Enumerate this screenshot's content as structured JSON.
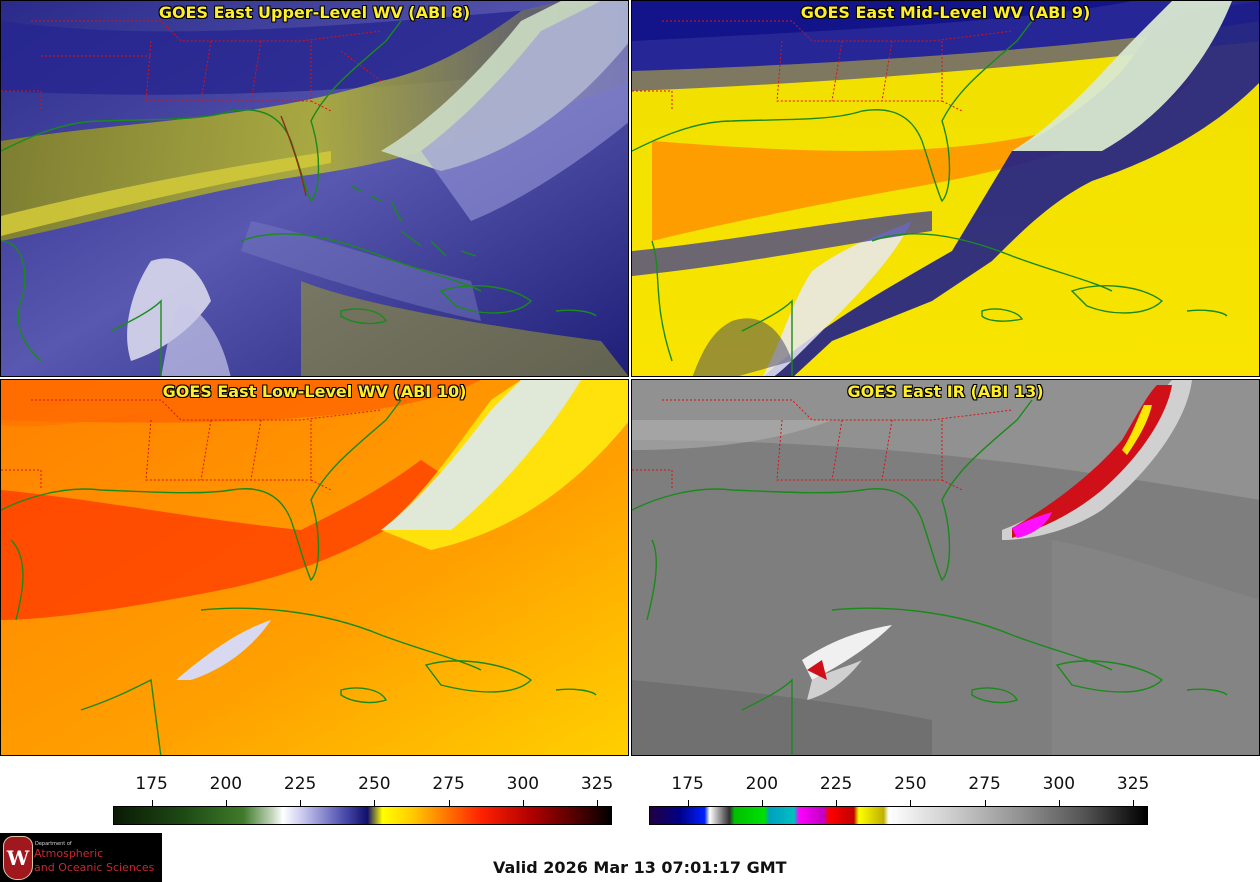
{
  "panels": [
    {
      "title": "GOES East Upper-Level WV (ABI 8)"
    },
    {
      "title": "GOES East Mid-Level WV (ABI 9)"
    },
    {
      "title": "GOES East Low-Level WV (ABI 10)"
    },
    {
      "title": "GOES East IR (ABI 13)"
    }
  ],
  "colorbars": {
    "wv": {
      "ticks": [
        "175",
        "200",
        "225",
        "250",
        "275",
        "300",
        "325"
      ],
      "min": 162,
      "max": 330
    },
    "ir": {
      "ticks": [
        "175",
        "200",
        "225",
        "250",
        "275",
        "300",
        "325"
      ],
      "min": 162,
      "max": 330
    }
  },
  "logo": {
    "seal_letter": "W",
    "dept_text": "Department of",
    "line1": "Atmospheric",
    "line2": "and Oceanic Sciences"
  },
  "valid_time": "Valid 2026 Mar 13 07:01:17 GMT",
  "colors": {
    "title_yellow": "#ffef2a",
    "coastline_green": "#1a8a1a",
    "state_border_red": "#e01010"
  }
}
